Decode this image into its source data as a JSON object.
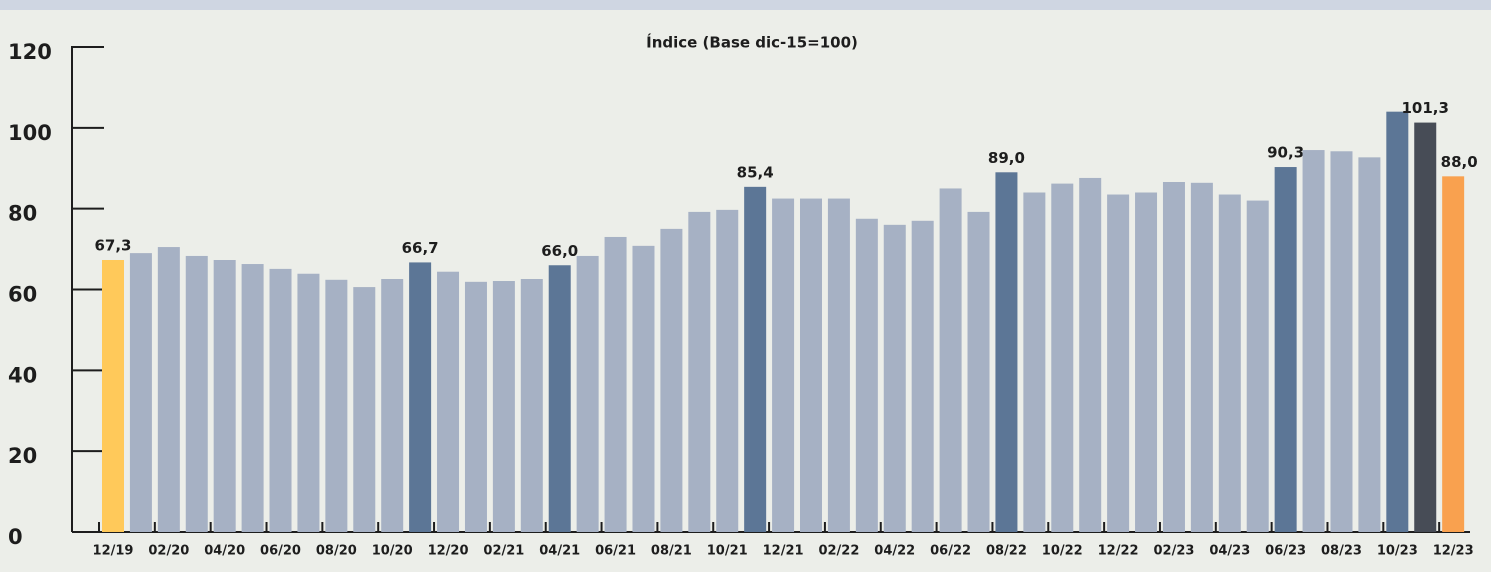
{
  "chart_data": {
    "type": "bar",
    "title": "Índice (Base dic-15=100)",
    "categories": [
      "12/19",
      null,
      "02/20",
      null,
      "04/20",
      null,
      "06/20",
      null,
      "08/20",
      null,
      "10/20",
      null,
      "12/20",
      null,
      "02/21",
      null,
      "04/21",
      null,
      "06/21",
      null,
      "08/21",
      null,
      "10/21",
      null,
      "12/21",
      null,
      "02/22",
      null,
      "04/22",
      null,
      "06/22",
      null,
      "08/22",
      null,
      "10/22",
      null,
      "12/22",
      null,
      "02/23",
      null,
      "04/23",
      null,
      "06/23",
      null,
      "08/23",
      null,
      "10/23",
      null,
      "12/23"
    ],
    "values": [
      67.3,
      69.0,
      70.5,
      68.3,
      67.3,
      66.3,
      65.1,
      63.9,
      62.4,
      60.6,
      62.6,
      66.7,
      64.4,
      61.9,
      62.1,
      62.6,
      66.0,
      68.3,
      73.0,
      70.8,
      75.0,
      79.2,
      79.7,
      85.4,
      82.5,
      82.5,
      82.5,
      77.5,
      76.0,
      77.0,
      85.0,
      79.2,
      89.0,
      84.0,
      86.2,
      87.6,
      83.5,
      84.0,
      86.6,
      86.4,
      83.5,
      82.0,
      90.3,
      94.5,
      94.2,
      92.7,
      104.0,
      101.3,
      88.0
    ],
    "value_labels": [
      "67,3",
      null,
      null,
      null,
      null,
      null,
      null,
      null,
      null,
      null,
      null,
      "66,7",
      null,
      null,
      null,
      null,
      "66,0",
      null,
      null,
      null,
      null,
      null,
      null,
      "85,4",
      null,
      null,
      null,
      null,
      null,
      null,
      null,
      null,
      "89,0",
      null,
      null,
      null,
      null,
      null,
      null,
      null,
      null,
      null,
      "90,3",
      null,
      null,
      null,
      null,
      "101,3",
      "88,0"
    ],
    "colors": [
      "#ffc95a",
      "#a6b1c4",
      "#a6b1c4",
      "#a6b1c4",
      "#a6b1c4",
      "#a6b1c4",
      "#a6b1c4",
      "#a6b1c4",
      "#a6b1c4",
      "#a6b1c4",
      "#a6b1c4",
      "#5c7696",
      "#a6b1c4",
      "#a6b1c4",
      "#a6b1c4",
      "#a6b1c4",
      "#5c7696",
      "#a6b1c4",
      "#a6b1c4",
      "#a6b1c4",
      "#a6b1c4",
      "#a6b1c4",
      "#a6b1c4",
      "#5c7696",
      "#a6b1c4",
      "#a6b1c4",
      "#a6b1c4",
      "#a6b1c4",
      "#a6b1c4",
      "#a6b1c4",
      "#a6b1c4",
      "#a6b1c4",
      "#5c7696",
      "#a6b1c4",
      "#a6b1c4",
      "#a6b1c4",
      "#a6b1c4",
      "#a6b1c4",
      "#a6b1c4",
      "#a6b1c4",
      "#a6b1c4",
      "#a6b1c4",
      "#5c7696",
      "#a6b1c4",
      "#a6b1c4",
      "#a6b1c4",
      "#5c7696",
      "#474c56",
      "#f9a14f"
    ],
    "ylim": [
      0,
      120
    ],
    "yticks": [
      0,
      20,
      40,
      60,
      80,
      100,
      120
    ]
  }
}
